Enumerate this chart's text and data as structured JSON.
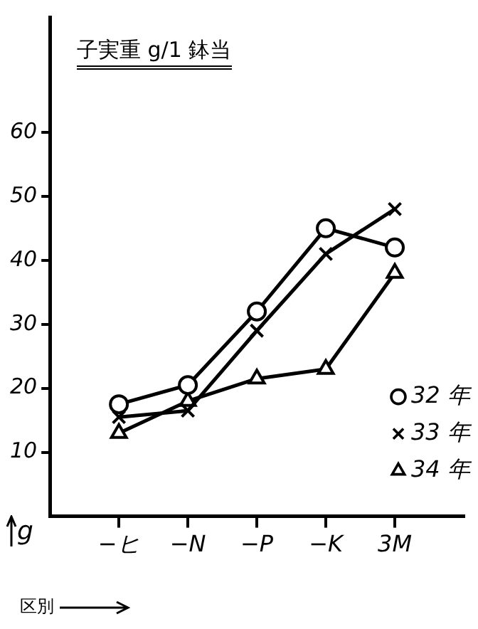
{
  "chart_data": {
    "type": "line",
    "title": "子実重 g/1 鉢当",
    "xlabel": "区別",
    "ylabel": "g",
    "categories": [
      "−ヒ",
      "−N",
      "−P",
      "−K",
      "3M"
    ],
    "ylim": [
      0,
      78
    ],
    "yticks": [
      10,
      20,
      30,
      40,
      50,
      60
    ],
    "grid": false,
    "legend": "right",
    "line_style": "solid",
    "series": [
      {
        "name": "32 年",
        "color": "#000000",
        "marker": "circle",
        "values": [
          17.5,
          20.5,
          32,
          45,
          42
        ]
      },
      {
        "name": "33 年",
        "color": "#000000",
        "marker": "cross",
        "values": [
          15.5,
          16.5,
          29,
          41,
          48
        ]
      },
      {
        "name": "34 年",
        "color": "#000000",
        "marker": "triangle",
        "values": [
          13,
          18,
          21.5,
          23,
          38
        ]
      }
    ]
  }
}
